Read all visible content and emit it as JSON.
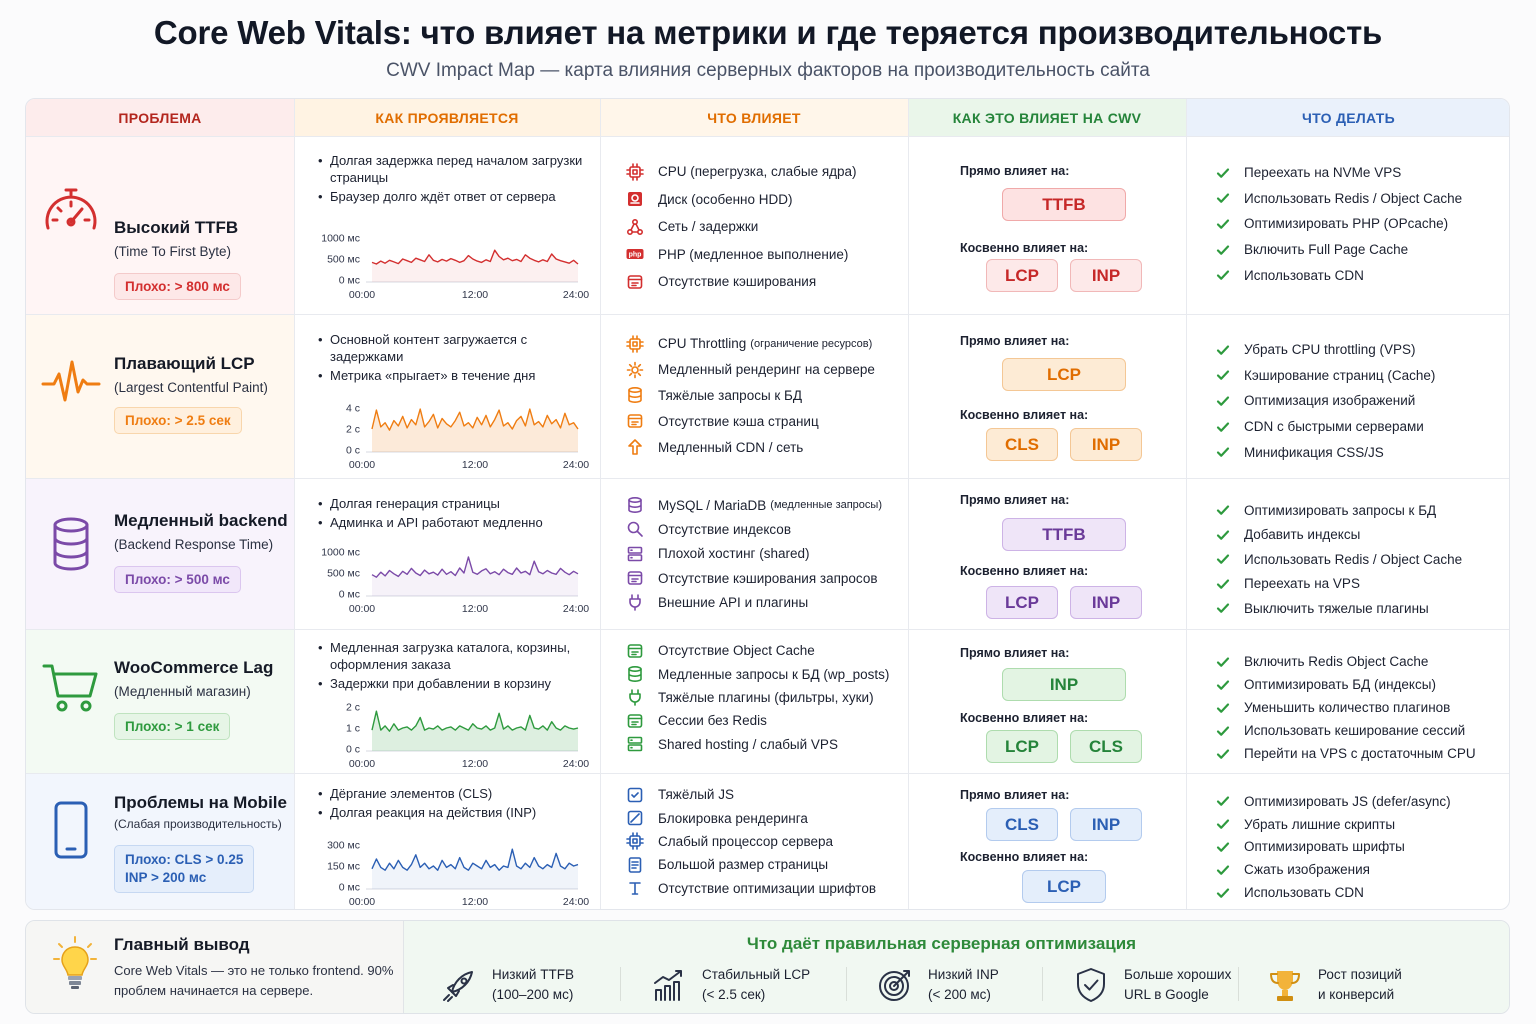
{
  "header": {
    "title": "Core Web Vitals: что влияет на метрики и где теряется производительность",
    "subtitle": "CWV Impact Map — карта влияния серверных факторов на производительность сайта"
  },
  "columns": [
    "ПРОБЛЕМА",
    "КАК ПРОЯВЛЯЕТСЯ",
    "ЧТО ВЛИЯЕТ",
    "КАК ЭТО ВЛИЯЕТ НА CWV",
    "ЧТО ДЕЛАТЬ"
  ],
  "labels": {
    "direct": "Прямо влияет на:",
    "indirect": "Косвенно влияет на:"
  },
  "colors": {
    "red": "#d32f2f",
    "orange": "#ef7d12",
    "purple": "#7b4aa8",
    "green": "#2e9a3e",
    "blue": "#2b5fb4"
  },
  "rows": [
    {
      "icon": "speedometer-icon",
      "title": "Высокий TTFB",
      "subtitle": "(Time To First Byte)",
      "bad": "Плохо: > 800 мс",
      "bullets": [
        "Долгая задержка перед началом загрузки страницы",
        "Браузер долго ждёт ответ от сервера"
      ],
      "chart_data": {
        "type": "line",
        "x_ticks": [
          "00:00",
          "12:00",
          "24:00"
        ],
        "y_ticks": [
          "1000 мс",
          "500 мс",
          "0 мс"
        ],
        "ylim": [
          0,
          1000
        ],
        "values": [
          420,
          380,
          450,
          400,
          470,
          430,
          390,
          500,
          460,
          420,
          520,
          480,
          440,
          600,
          470,
          430,
          490,
          450,
          510,
          470,
          420,
          460,
          580,
          500,
          450,
          420,
          480,
          440,
          710,
          560,
          480,
          520,
          460,
          490,
          440,
          600,
          520,
          470,
          430,
          480,
          440,
          620,
          500,
          460,
          430,
          400,
          470,
          380
        ]
      },
      "factors": [
        {
          "icon": "cpu-icon",
          "text": "CPU (перегрузка, слабые ядра)",
          "small": ""
        },
        {
          "icon": "disk-icon",
          "text": "Диск (особенно HDD)",
          "small": ""
        },
        {
          "icon": "network-icon",
          "text": "Сеть / задержки",
          "small": ""
        },
        {
          "icon": "php-icon",
          "text": "PHP (медленное выполнение)",
          "small": "",
          "badge": "php"
        },
        {
          "icon": "cache-icon",
          "text": "Отсутствие кэширования",
          "small": ""
        }
      ],
      "direct": [
        "TTFB"
      ],
      "indirect": [
        "LCP",
        "INP"
      ],
      "todo": [
        "Переехать на NVMe VPS",
        "Использовать Redis / Object Cache",
        "Оптимизировать PHP (OPcache)",
        "Включить Full Page Cache",
        "Использовать CDN"
      ]
    },
    {
      "icon": "pulse-icon",
      "title": "Плавающий LCP",
      "subtitle": "(Largest Contentful Paint)",
      "bad": "Плохо: > 2.5 сек",
      "bullets": [
        "Основной контент загружается с задержками",
        "Метрика «прыгает» в течение дня"
      ],
      "chart_data": {
        "type": "area",
        "x_ticks": [
          "00:00",
          "12:00",
          "24:00"
        ],
        "y_ticks": [
          "4 с",
          "2 с",
          "0 с"
        ],
        "ylim": [
          0,
          4
        ],
        "values": [
          2.0,
          3.8,
          2.2,
          2.6,
          1.9,
          2.8,
          2.3,
          3.2,
          2.1,
          2.9,
          2.4,
          3.9,
          2.2,
          2.7,
          3.4,
          2.1,
          3.0,
          2.5,
          2.2,
          2.8,
          3.6,
          2.3,
          2.6,
          2.1,
          3.1,
          2.4,
          3.3,
          2.2,
          2.9,
          3.8,
          2.3,
          2.6,
          2.0,
          2.8,
          3.2,
          2.3,
          3.9,
          2.4,
          2.7,
          2.2,
          3.3,
          2.5,
          2.9,
          2.1,
          3.5,
          2.4,
          2.6,
          2.0
        ]
      },
      "factors": [
        {
          "icon": "cpu-icon",
          "text": "CPU Throttling",
          "small": "(ограничение ресурсов)"
        },
        {
          "icon": "render-icon",
          "text": "Медленный рендеринг на сервере",
          "small": ""
        },
        {
          "icon": "database-icon",
          "text": "Тяжёлые запросы к БД",
          "small": ""
        },
        {
          "icon": "page-cache-icon",
          "text": "Отсутствие кэша страниц",
          "small": ""
        },
        {
          "icon": "cdn-icon",
          "text": "Медленный CDN / сеть",
          "small": ""
        }
      ],
      "direct": [
        "LCP"
      ],
      "indirect": [
        "CLS",
        "INP"
      ],
      "todo": [
        "Убрать CPU throttling (VPS)",
        "Кэширование страниц (Cache)",
        "Оптимизация изображений",
        "CDN с быстрыми серверами",
        "Минификация CSS/JS"
      ]
    },
    {
      "icon": "database-icon",
      "title": "Медленный backend",
      "subtitle": "(Backend Response Time)",
      "bad": "Плохо: > 500 мс",
      "bullets": [
        "Долгая генерация страницы",
        "Админка и API работают медленно"
      ],
      "chart_data": {
        "type": "line",
        "x_ticks": [
          "00:00",
          "12:00",
          "24:00"
        ],
        "y_ticks": [
          "1000 мс",
          "500 мс",
          "0 мс"
        ],
        "ylim": [
          0,
          1000
        ],
        "values": [
          460,
          400,
          520,
          430,
          560,
          480,
          420,
          540,
          470,
          610,
          500,
          440,
          570,
          480,
          520,
          450,
          590,
          470,
          530,
          440,
          620,
          500,
          880,
          520,
          470,
          550,
          600,
          480,
          530,
          460,
          590,
          510,
          470,
          620,
          500,
          540,
          460,
          780,
          530,
          480,
          560,
          500,
          470,
          610,
          520,
          460,
          540,
          480
        ]
      },
      "factors": [
        {
          "icon": "database-icon",
          "text": "MySQL / MariaDB",
          "small": "(медленные запросы)"
        },
        {
          "icon": "search-icon",
          "text": "Отсутствие индексов",
          "small": ""
        },
        {
          "icon": "server-icon",
          "text": "Плохой хостинг (shared)",
          "small": ""
        },
        {
          "icon": "query-cache-icon",
          "text": "Отсутствие кэширования запросов",
          "small": ""
        },
        {
          "icon": "plugin-icon",
          "text": "Внешние API и плагины",
          "small": ""
        }
      ],
      "direct": [
        "TTFB"
      ],
      "indirect": [
        "LCP",
        "INP"
      ],
      "todo": [
        "Оптимизировать запросы к БД",
        "Добавить индексы",
        "Использовать Redis / Object Cache",
        "Переехать на VPS",
        "Выключить тяжелые плагины"
      ]
    },
    {
      "icon": "cart-icon",
      "title": "WooCommerce Lag",
      "subtitle": "(Медленный магазин)",
      "bad": "Плохо: > 1 сек",
      "bullets": [
        "Медленная загрузка каталога, корзины, оформления заказа",
        "Задержки при добавлении в корзину"
      ],
      "chart_data": {
        "type": "area",
        "x_ticks": [
          "00:00",
          "12:00",
          "24:00"
        ],
        "y_ticks": [
          "2 с",
          "1 с",
          "0 с"
        ],
        "ylim": [
          0,
          2
        ],
        "values": [
          0.9,
          1.8,
          0.9,
          1.1,
          0.85,
          1.2,
          0.9,
          1.0,
          1.05,
          0.9,
          1.1,
          1.5,
          0.9,
          1.0,
          0.95,
          1.1,
          0.9,
          1.0,
          1.05,
          0.9,
          1.1,
          1.0,
          0.9,
          1.2,
          1.0,
          0.95,
          1.1,
          0.9,
          1.0,
          1.7,
          0.95,
          1.1,
          0.9,
          1.0,
          1.05,
          0.9,
          1.6,
          1.0,
          0.95,
          1.1,
          0.9,
          1.3,
          1.0,
          0.9,
          1.1,
          1.0,
          0.95,
          1.0
        ]
      },
      "factors": [
        {
          "icon": "object-cache-icon",
          "text": "Отсутствие Object Cache",
          "small": ""
        },
        {
          "icon": "query-icon",
          "text": "Медленные запросы к БД (wp_posts)",
          "small": ""
        },
        {
          "icon": "plugin-box-icon",
          "text": "Тяжёлые плагины (фильтры, хуки)",
          "small": ""
        },
        {
          "icon": "session-icon",
          "text": "Сессии без Redis",
          "small": ""
        },
        {
          "icon": "hosting-icon",
          "text": "Shared hosting / слабый VPS",
          "small": ""
        }
      ],
      "direct": [
        "INP"
      ],
      "indirect": [
        "LCP",
        "CLS"
      ],
      "todo": [
        "Включить Redis Object Cache",
        "Оптимизировать БД (индексы)",
        "Уменьшить количество плагинов",
        "Использовать кеширование сессий",
        "Перейти на VPS с достаточным CPU"
      ]
    },
    {
      "icon": "mobile-icon",
      "title": "Проблемы на Mobile",
      "subtitle": "(Слабая производительность)",
      "bad": "Плохо: CLS > 0.25",
      "bad2": "INP > 200 мс",
      "bullets": [
        "Дёргание элементов (CLS)",
        "Долгая реакция на действия (INP)"
      ],
      "chart_data": {
        "type": "line",
        "x_ticks": [
          "00:00",
          "12:00",
          "24:00"
        ],
        "y_ticks": [
          "300 мс",
          "150 мс",
          "0 мс"
        ],
        "ylim": [
          0,
          300
        ],
        "values": [
          130,
          200,
          140,
          120,
          170,
          130,
          190,
          140,
          120,
          160,
          230,
          140,
          170,
          130,
          150,
          120,
          190,
          140,
          160,
          130,
          210,
          140,
          120,
          170,
          150,
          130,
          190,
          140,
          160,
          120,
          150,
          140,
          270,
          150,
          130,
          170,
          140,
          210,
          150,
          130,
          160,
          140,
          240,
          150,
          130,
          170,
          150,
          160
        ]
      },
      "factors": [
        {
          "icon": "js-icon",
          "text": "Тяжёлый JS",
          "small": ""
        },
        {
          "icon": "blocking-icon",
          "text": "Блокировка рендеринга",
          "small": ""
        },
        {
          "icon": "processor-icon",
          "text": "Слабый процессор сервера",
          "small": ""
        },
        {
          "icon": "page-size-icon",
          "text": "Большой размер страницы",
          "small": ""
        },
        {
          "icon": "font-icon",
          "text": "Отсутствие оптимизации шрифтов",
          "small": ""
        }
      ],
      "direct": [
        "CLS",
        "INP"
      ],
      "indirect": [
        "LCP"
      ],
      "todo": [
        "Оптимизировать JS (defer/async)",
        "Убрать лишние скрипты",
        "Оптимизировать шрифты",
        "Сжать изображения",
        "Использовать CDN"
      ]
    }
  ],
  "footer": {
    "conclusion_title": "Главный вывод",
    "conclusion_text": "Core Web Vitals — это не только frontend. 90% проблем начинается на сервере.",
    "benefits_title": "Что даёт правильная серверная оптимизация",
    "benefits": [
      {
        "icon": "rocket-icon",
        "line1": "Низкий TTFB",
        "line2": "(100–200 мс)"
      },
      {
        "icon": "growth-chart-icon",
        "line1": "Стабильный LCP",
        "line2": "(< 2.5 сек)"
      },
      {
        "icon": "target-icon",
        "line1": "Низкий INP",
        "line2": "(< 200 мс)"
      },
      {
        "icon": "shield-check-icon",
        "line1": "Больше хороших",
        "line2": "URL в Google"
      },
      {
        "icon": "trophy-icon",
        "line1": "Рост позиций",
        "line2": "и конверсий"
      }
    ]
  }
}
